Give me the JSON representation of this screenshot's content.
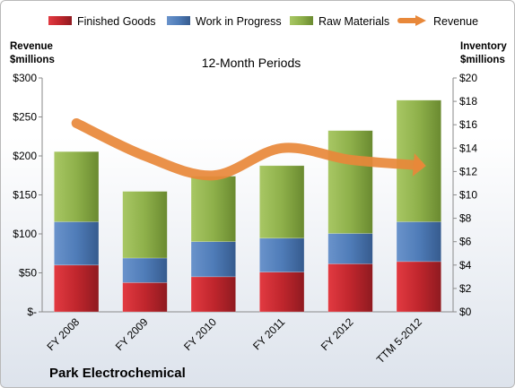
{
  "chart_data": {
    "type": "bar",
    "company": "Park Electrochemical",
    "subtitle": "12-Month Periods",
    "left_axis_title": [
      "Revenue",
      "$millions"
    ],
    "right_axis_title": [
      "Inventory",
      "$millions"
    ],
    "categories": [
      "FY 2008",
      "FY 2009",
      "FY 2010",
      "FY 2011",
      "FY 2012",
      "TTM 5-2012"
    ],
    "left_ylim": [
      0,
      300
    ],
    "left_ticks": [
      "$-",
      "$50",
      "$100",
      "$150",
      "$200",
      "$250",
      "$300"
    ],
    "right_ylim": [
      0,
      20
    ],
    "right_ticks": [
      "$0",
      "$2",
      "$4",
      "$6",
      "$8",
      "$10",
      "$12",
      "$14",
      "$16",
      "$18",
      "$20"
    ],
    "grid": false,
    "legend_position": "top",
    "stacked": true,
    "series": [
      {
        "name": "Finished Goods",
        "color": "#c0262d",
        "axis": "right",
        "values": [
          4.0,
          2.5,
          3.0,
          3.4,
          4.1,
          4.3
        ]
      },
      {
        "name": "Work in Progress",
        "color": "#4f7cb8",
        "axis": "right",
        "values": [
          3.7,
          2.1,
          3.0,
          2.9,
          2.6,
          3.4
        ]
      },
      {
        "name": "Raw Materials",
        "color": "#8eb04a",
        "axis": "right",
        "values": [
          6.0,
          5.7,
          5.6,
          6.2,
          8.8,
          10.4
        ]
      }
    ],
    "line_series": {
      "name": "Revenue",
      "color": "#e8883a",
      "axis": "left",
      "values": [
        242,
        200,
        175,
        210,
        195,
        188
      ]
    }
  }
}
